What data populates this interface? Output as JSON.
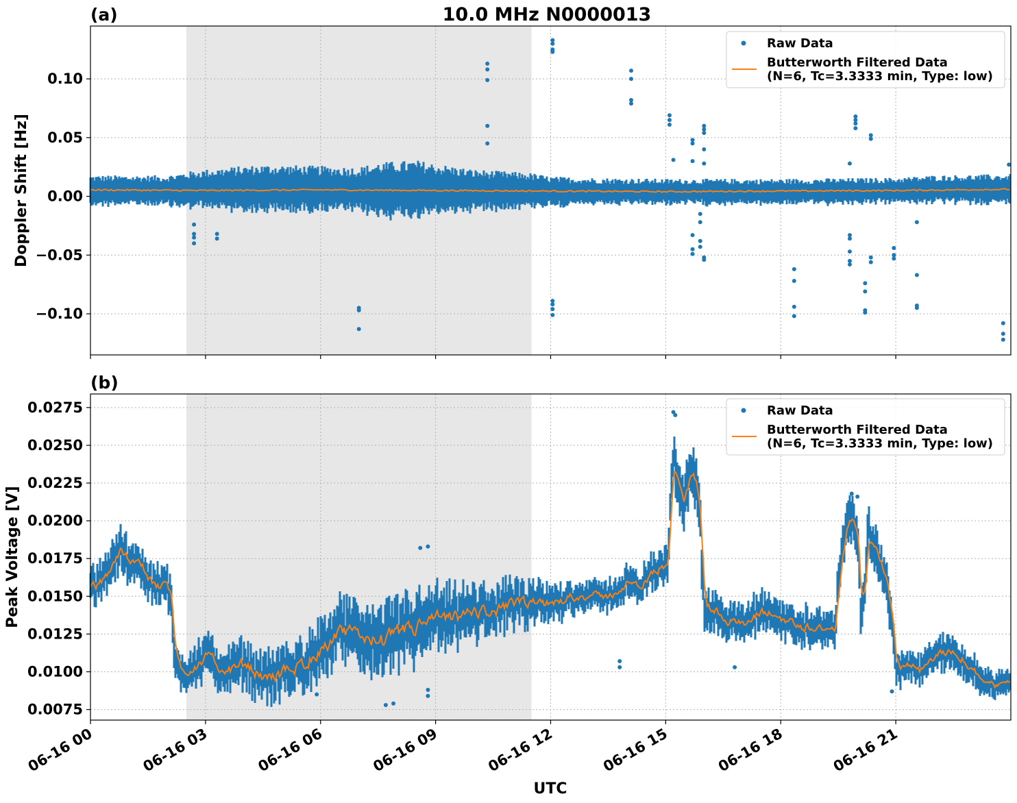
{
  "figure_title": "10.0 MHz N0000013",
  "xlabel": "UTC",
  "colors": {
    "raw": "#1f77b4",
    "filtered": "#ff7f0e",
    "night_shade": "#d3d3d3"
  },
  "chart_data": [
    {
      "type": "scatter",
      "panel_label": "(a)",
      "ylabel": "Doppler Shift [Hz]",
      "xlim": [
        0,
        24
      ],
      "ylim": [
        -0.135,
        0.145
      ],
      "y_ticks": [
        -0.1,
        -0.05,
        0.0,
        0.05,
        0.1
      ],
      "y_tick_labels": [
        "−0.10",
        "−0.05",
        "0.00",
        "0.05",
        "0.10"
      ],
      "x_ticks": [
        0,
        3,
        6,
        9,
        12,
        15,
        18,
        21
      ],
      "x_tick_labels": [
        "06-16 00",
        "06-16 03",
        "06-16 06",
        "06-16 09",
        "06-16 12",
        "06-16 15",
        "06-16 18",
        "06-16 21"
      ],
      "grid": true,
      "legend_position": "upper-right",
      "legend": [
        "Raw Data",
        "Butterworth Filtered Data",
        "(N=6, Tc=3.3333 min, Type: low)"
      ],
      "shaded_span_hours": [
        2.5,
        11.5
      ],
      "band_envelope": {
        "hours": [
          0,
          2,
          2.5,
          3,
          4,
          4.5,
          5,
          6,
          7,
          7.5,
          8,
          8.5,
          9,
          10,
          11,
          11.5,
          12,
          13,
          15,
          18,
          21,
          22,
          24
        ],
        "center": [
          0.004,
          0.004,
          0.004,
          0.005,
          0.005,
          0.005,
          0.005,
          0.005,
          0.004,
          0.004,
          0.004,
          0.004,
          0.004,
          0.004,
          0.004,
          0.004,
          0.003,
          0.003,
          0.003,
          0.003,
          0.004,
          0.005,
          0.005
        ],
        "half": [
          0.014,
          0.014,
          0.017,
          0.018,
          0.021,
          0.022,
          0.022,
          0.021,
          0.021,
          0.025,
          0.026,
          0.027,
          0.024,
          0.019,
          0.017,
          0.016,
          0.014,
          0.013,
          0.012,
          0.012,
          0.012,
          0.013,
          0.014
        ]
      },
      "filtered_line": {
        "hours": [
          0,
          3,
          6,
          9,
          12,
          15,
          18,
          21,
          24
        ],
        "values": [
          0.0055,
          0.005,
          0.0055,
          0.005,
          0.0045,
          0.004,
          0.0045,
          0.005,
          0.006
        ]
      },
      "outliers": [
        [
          2.7,
          -0.024
        ],
        [
          2.7,
          -0.032
        ],
        [
          2.7,
          -0.035
        ],
        [
          2.7,
          -0.04
        ],
        [
          3.3,
          -0.032
        ],
        [
          3.3,
          -0.036
        ],
        [
          7.0,
          -0.095
        ],
        [
          7.0,
          -0.097
        ],
        [
          7.0,
          -0.113
        ],
        [
          10.35,
          0.113
        ],
        [
          10.35,
          0.108
        ],
        [
          10.35,
          0.099
        ],
        [
          10.35,
          0.06
        ],
        [
          10.35,
          0.045
        ],
        [
          12.05,
          0.133
        ],
        [
          12.05,
          0.13
        ],
        [
          12.05,
          0.125
        ],
        [
          12.05,
          0.123
        ],
        [
          12.05,
          -0.089
        ],
        [
          12.05,
          -0.092
        ],
        [
          12.05,
          -0.096
        ],
        [
          12.05,
          -0.101
        ],
        [
          14.1,
          0.107
        ],
        [
          14.1,
          0.1
        ],
        [
          14.1,
          0.082
        ],
        [
          14.1,
          0.079
        ],
        [
          15.1,
          0.069
        ],
        [
          15.1,
          0.065
        ],
        [
          15.1,
          0.061
        ],
        [
          15.2,
          0.031
        ],
        [
          15.7,
          0.048
        ],
        [
          15.7,
          0.045
        ],
        [
          15.7,
          0.03
        ],
        [
          15.7,
          -0.033
        ],
        [
          15.7,
          -0.045
        ],
        [
          15.7,
          -0.049
        ],
        [
          15.9,
          -0.015
        ],
        [
          15.9,
          -0.022
        ],
        [
          15.9,
          -0.038
        ],
        [
          15.9,
          -0.043
        ],
        [
          16.0,
          0.06
        ],
        [
          16.0,
          0.057
        ],
        [
          16.0,
          0.054
        ],
        [
          16.0,
          0.04
        ],
        [
          16.0,
          0.028
        ],
        [
          16.0,
          -0.052
        ],
        [
          16.0,
          -0.054
        ],
        [
          18.35,
          -0.062
        ],
        [
          18.35,
          -0.072
        ],
        [
          18.35,
          -0.094
        ],
        [
          18.35,
          -0.102
        ],
        [
          19.8,
          0.028
        ],
        [
          19.8,
          -0.033
        ],
        [
          19.8,
          -0.036
        ],
        [
          19.8,
          -0.047
        ],
        [
          19.8,
          -0.055
        ],
        [
          19.8,
          -0.058
        ],
        [
          19.95,
          0.068
        ],
        [
          19.95,
          0.065
        ],
        [
          19.95,
          0.062
        ],
        [
          19.95,
          0.058
        ],
        [
          20.2,
          -0.074
        ],
        [
          20.2,
          -0.081
        ],
        [
          20.2,
          -0.097
        ],
        [
          20.2,
          -0.099
        ],
        [
          20.35,
          0.052
        ],
        [
          20.35,
          0.049
        ],
        [
          20.35,
          -0.052
        ],
        [
          20.35,
          -0.056
        ],
        [
          20.95,
          -0.044
        ],
        [
          20.95,
          -0.05
        ],
        [
          20.95,
          -0.053
        ],
        [
          21.55,
          -0.022
        ],
        [
          21.55,
          -0.067
        ],
        [
          21.55,
          -0.093
        ],
        [
          21.55,
          -0.095
        ],
        [
          23.8,
          -0.108
        ],
        [
          23.8,
          -0.117
        ],
        [
          23.8,
          -0.122
        ],
        [
          23.95,
          0.027
        ]
      ]
    },
    {
      "type": "scatter",
      "panel_label": "(b)",
      "ylabel": "Peak Voltage [V]",
      "xlim": [
        0,
        24
      ],
      "ylim": [
        0.0068,
        0.0284
      ],
      "y_ticks": [
        0.0075,
        0.01,
        0.0125,
        0.015,
        0.0175,
        0.02,
        0.0225,
        0.025,
        0.0275
      ],
      "y_tick_labels": [
        "0.0075",
        "0.0100",
        "0.0125",
        "0.0150",
        "0.0175",
        "0.0200",
        "0.0225",
        "0.0250",
        "0.0275"
      ],
      "x_ticks": [
        0,
        3,
        6,
        9,
        12,
        15,
        18,
        21
      ],
      "x_tick_labels": [
        "06-16 00",
        "06-16 03",
        "06-16 06",
        "06-16 09",
        "06-16 12",
        "06-16 15",
        "06-16 18",
        "06-16 21"
      ],
      "grid": true,
      "legend_position": "upper-right",
      "legend": [
        "Raw Data",
        "Butterworth Filtered Data",
        "(N=6, Tc=3.3333 min, Type: low)"
      ],
      "shaded_span_hours": [
        2.5,
        11.5
      ],
      "series_trace": {
        "hours": [
          0,
          0.3,
          0.6,
          0.8,
          1.0,
          1.2,
          1.5,
          1.7,
          1.9,
          2.1,
          2.2,
          2.5,
          3.0,
          3.5,
          4.0,
          4.5,
          5.0,
          5.5,
          6.0,
          6.5,
          7.0,
          7.5,
          8.0,
          8.5,
          9.0,
          9.5,
          10.0,
          10.5,
          11.0,
          11.5,
          12.0,
          12.5,
          13.0,
          13.5,
          13.8,
          14.0,
          14.3,
          14.6,
          14.9,
          15.05,
          15.2,
          15.35,
          15.5,
          15.65,
          15.75,
          15.9,
          16.0,
          16.3,
          16.6,
          17.0,
          17.5,
          18.0,
          18.5,
          19.0,
          19.4,
          19.6,
          19.8,
          20.0,
          20.1,
          20.3,
          20.5,
          20.7,
          20.9,
          21.0,
          21.3,
          21.6,
          22.0,
          22.5,
          23.0,
          23.3,
          23.6,
          24.0
        ],
        "values": [
          0.0155,
          0.016,
          0.0175,
          0.018,
          0.0175,
          0.0175,
          0.016,
          0.0155,
          0.016,
          0.015,
          0.0105,
          0.01,
          0.011,
          0.01,
          0.0105,
          0.0095,
          0.01,
          0.0105,
          0.0115,
          0.0125,
          0.0125,
          0.012,
          0.0125,
          0.013,
          0.0135,
          0.0135,
          0.014,
          0.014,
          0.0145,
          0.0145,
          0.0145,
          0.015,
          0.015,
          0.015,
          0.0155,
          0.016,
          0.0155,
          0.0165,
          0.017,
          0.0175,
          0.0245,
          0.0225,
          0.021,
          0.024,
          0.023,
          0.0195,
          0.014,
          0.014,
          0.0135,
          0.013,
          0.014,
          0.0135,
          0.013,
          0.013,
          0.0125,
          0.019,
          0.02,
          0.0195,
          0.013,
          0.0195,
          0.018,
          0.016,
          0.014,
          0.01,
          0.0105,
          0.01,
          0.011,
          0.0115,
          0.01,
          0.0095,
          0.009,
          0.0095
        ],
        "spread": [
          0.0012,
          0.0012,
          0.0014,
          0.0014,
          0.0014,
          0.0013,
          0.0013,
          0.0013,
          0.0013,
          0.0013,
          0.0012,
          0.0012,
          0.0014,
          0.0014,
          0.0015,
          0.0015,
          0.0016,
          0.0017,
          0.0018,
          0.002,
          0.0021,
          0.0022,
          0.0023,
          0.0022,
          0.002,
          0.0019,
          0.0017,
          0.0016,
          0.0015,
          0.0014,
          0.0012,
          0.0011,
          0.001,
          0.001,
          0.001,
          0.0011,
          0.001,
          0.0011,
          0.0012,
          0.0014,
          0.0016,
          0.0018,
          0.0018,
          0.0017,
          0.0018,
          0.0018,
          0.0014,
          0.0014,
          0.0013,
          0.0012,
          0.0013,
          0.0012,
          0.0012,
          0.0012,
          0.0012,
          0.0015,
          0.0015,
          0.0016,
          0.0014,
          0.0015,
          0.0015,
          0.0015,
          0.0014,
          0.001,
          0.001,
          0.001,
          0.0011,
          0.0011,
          0.001,
          0.001,
          0.0009,
          0.0009
        ]
      },
      "outliers": [
        [
          8.6,
          0.0182
        ],
        [
          8.8,
          0.0183
        ],
        [
          7.7,
          0.0078
        ],
        [
          7.9,
          0.0079
        ],
        [
          8.8,
          0.0084
        ],
        [
          8.8,
          0.0088
        ],
        [
          5.9,
          0.0085
        ],
        [
          13.8,
          0.0103
        ],
        [
          13.8,
          0.0107
        ],
        [
          15.2,
          0.0272
        ],
        [
          15.25,
          0.027
        ],
        [
          16.8,
          0.0103
        ],
        [
          19.85,
          0.0218
        ],
        [
          20.0,
          0.0216
        ],
        [
          14.5,
          0.0165
        ],
        [
          20.9,
          0.0087
        ]
      ]
    }
  ]
}
